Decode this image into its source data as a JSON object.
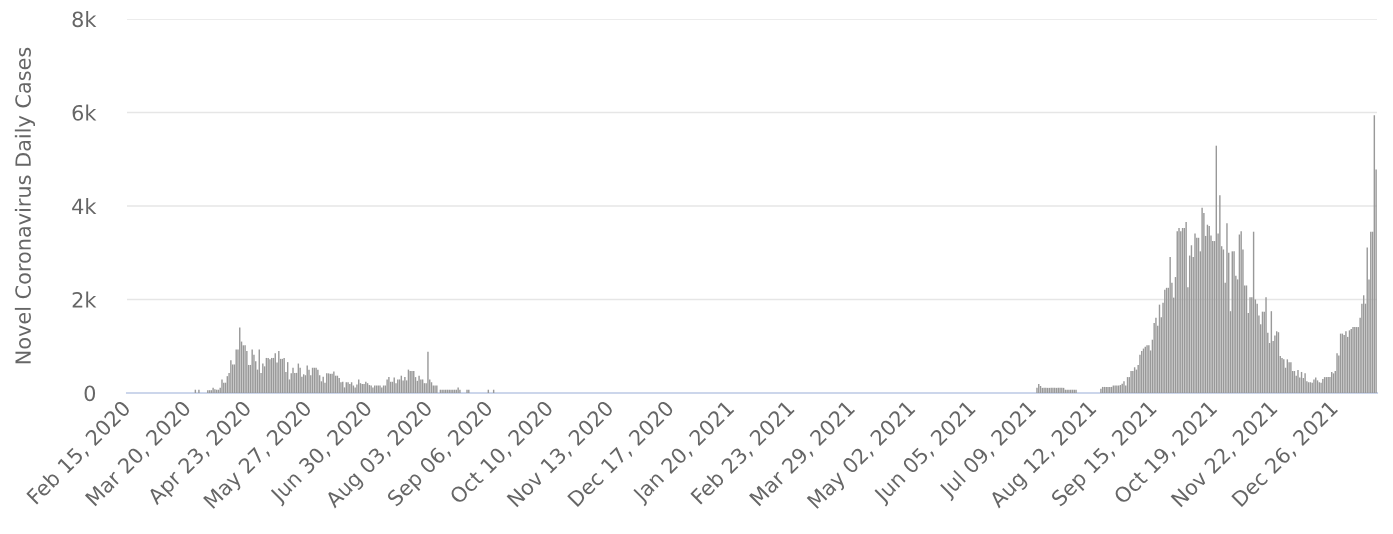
{
  "chart_data": {
    "type": "bar",
    "ylabel": "Novel Coronavirus Daily Cases",
    "color": "#999999",
    "ylim": [
      0,
      8000
    ],
    "yticks": [
      0,
      {
        "value": 2000,
        "label": "2k"
      },
      {
        "value": 4000,
        "label": "4k"
      },
      {
        "value": 6000,
        "label": "6k"
      },
      {
        "value": 8000,
        "label": "8k"
      }
    ],
    "grid": "y",
    "xlim": [
      "2020-02-14T12:00",
      "2022-01-18T12:00"
    ],
    "xticks": [
      {
        "value": "2020-02-15",
        "label": "Feb 15, 2020"
      },
      {
        "value": "2020-03-20",
        "label": "Mar 20, 2020"
      },
      {
        "value": "2020-04-23",
        "label": "Apr 23, 2020"
      },
      {
        "value": "2020-05-27",
        "label": "May 27, 2020"
      },
      {
        "value": "2020-06-30",
        "label": "Jun 30, 2020"
      },
      {
        "value": "2020-08-03",
        "label": "Aug 03, 2020"
      },
      {
        "value": "2020-09-06",
        "label": "Sep 06, 2020"
      },
      {
        "value": "2020-10-10",
        "label": "Oct 10, 2020"
      },
      {
        "value": "2020-11-13",
        "label": "Nov 13, 2020"
      },
      {
        "value": "2020-12-17",
        "label": "Dec 17, 2020"
      },
      {
        "value": "2021-01-20",
        "label": "Jan 20, 2021"
      },
      {
        "value": "2021-02-23",
        "label": "Feb 23, 2021"
      },
      {
        "value": "2021-03-29",
        "label": "Mar 29, 2021"
      },
      {
        "value": "2021-05-02",
        "label": "May 02, 2021"
      },
      {
        "value": "2021-06-05",
        "label": "Jun 05, 2021"
      },
      {
        "value": "2021-07-09",
        "label": "Jul 09, 2021"
      },
      {
        "value": "2021-08-12",
        "label": "Aug 12, 2021"
      },
      {
        "value": "2021-09-15",
        "label": "Sep 15, 2021"
      },
      {
        "value": "2021-10-19",
        "label": "Oct 19, 2021"
      },
      {
        "value": "2021-11-22",
        "label": "Nov 22, 2021"
      },
      {
        "value": "2021-12-26",
        "label": "Dec 26, 2021"
      }
    ],
    "x": [
      "2020-03-24",
      "2020-03-26",
      "2020-03-31",
      "2020-04-01",
      "2020-04-02",
      "2020-04-03",
      "2020-04-04",
      "2020-04-05",
      "2020-04-06",
      "2020-04-07",
      "2020-04-08",
      "2020-04-09",
      "2020-04-10",
      "2020-04-11",
      "2020-04-12",
      "2020-04-13",
      "2020-04-14",
      "2020-04-15",
      "2020-04-16",
      "2020-04-17",
      "2020-04-18",
      "2020-04-19",
      "2020-04-20",
      "2020-04-21",
      "2020-04-22",
      "2020-04-23",
      "2020-04-24",
      "2020-04-25",
      "2020-04-26",
      "2020-04-27",
      "2020-04-28",
      "2020-04-29",
      "2020-04-30",
      "2020-05-01",
      "2020-05-02",
      "2020-05-03",
      "2020-05-04",
      "2020-05-05",
      "2020-05-06",
      "2020-05-07",
      "2020-05-08",
      "2020-05-09",
      "2020-05-10",
      "2020-05-11",
      "2020-05-12",
      "2020-05-13",
      "2020-05-14",
      "2020-05-15",
      "2020-05-16",
      "2020-05-17",
      "2020-05-18",
      "2020-05-19",
      "2020-05-20",
      "2020-05-21",
      "2020-05-22",
      "2020-05-23",
      "2020-05-24",
      "2020-05-25",
      "2020-05-26",
      "2020-05-27",
      "2020-05-28",
      "2020-05-29",
      "2020-05-30",
      "2020-05-31",
      "2020-06-01",
      "2020-06-02",
      "2020-06-03",
      "2020-06-04",
      "2020-06-05",
      "2020-06-06",
      "2020-06-07",
      "2020-06-08",
      "2020-06-09",
      "2020-06-10",
      "2020-06-11",
      "2020-06-12",
      "2020-06-13",
      "2020-06-14",
      "2020-06-15",
      "2020-06-16",
      "2020-06-17",
      "2020-06-18",
      "2020-06-19",
      "2020-06-20",
      "2020-06-21",
      "2020-06-22",
      "2020-06-23",
      "2020-06-24",
      "2020-06-25",
      "2020-06-26",
      "2020-06-27",
      "2020-06-28",
      "2020-06-29",
      "2020-06-30",
      "2020-07-01",
      "2020-07-02",
      "2020-07-03",
      "2020-07-04",
      "2020-07-05",
      "2020-07-06",
      "2020-07-07",
      "2020-07-08",
      "2020-07-09",
      "2020-07-10",
      "2020-07-11",
      "2020-07-12",
      "2020-07-13",
      "2020-07-14",
      "2020-07-15",
      "2020-07-16",
      "2020-07-17",
      "2020-07-18",
      "2020-07-19",
      "2020-07-20",
      "2020-07-21",
      "2020-07-22",
      "2020-07-23",
      "2020-07-24",
      "2020-07-25",
      "2020-07-26",
      "2020-07-27",
      "2020-07-28",
      "2020-07-29",
      "2020-07-30",
      "2020-07-31",
      "2020-08-01",
      "2020-08-02",
      "2020-08-03",
      "2020-08-04",
      "2020-08-05",
      "2020-08-06",
      "2020-08-07",
      "2020-08-09",
      "2020-08-10",
      "2020-08-11",
      "2020-08-12",
      "2020-08-13",
      "2020-08-14",
      "2020-08-15",
      "2020-08-16",
      "2020-08-17",
      "2020-08-18",
      "2020-08-19",
      "2020-08-20",
      "2020-08-24",
      "2020-08-25",
      "2020-09-05",
      "2020-09-08",
      "2021-07-11",
      "2021-07-12",
      "2021-07-13",
      "2021-07-14",
      "2021-07-15",
      "2021-07-16",
      "2021-07-17",
      "2021-07-18",
      "2021-07-19",
      "2021-07-20",
      "2021-07-21",
      "2021-07-22",
      "2021-07-23",
      "2021-07-24",
      "2021-07-25",
      "2021-07-26",
      "2021-07-27",
      "2021-07-28",
      "2021-07-29",
      "2021-07-30",
      "2021-07-31",
      "2021-08-01",
      "2021-08-02",
      "2021-08-16",
      "2021-08-17",
      "2021-08-18",
      "2021-08-19",
      "2021-08-20",
      "2021-08-21",
      "2021-08-22",
      "2021-08-23",
      "2021-08-24",
      "2021-08-25",
      "2021-08-26",
      "2021-08-27",
      "2021-08-28",
      "2021-08-29",
      "2021-08-30",
      "2021-08-31",
      "2021-09-01",
      "2021-09-02",
      "2021-09-03",
      "2021-09-04",
      "2021-09-05",
      "2021-09-06",
      "2021-09-07",
      "2021-09-08",
      "2021-09-09",
      "2021-09-10",
      "2021-09-11",
      "2021-09-12",
      "2021-09-13",
      "2021-09-14",
      "2021-09-15",
      "2021-09-16",
      "2021-09-17",
      "2021-09-18",
      "2021-09-19",
      "2021-09-20",
      "2021-09-21",
      "2021-09-22",
      "2021-09-23",
      "2021-09-24",
      "2021-09-25",
      "2021-09-26",
      "2021-09-27",
      "2021-09-28",
      "2021-09-29",
      "2021-09-30",
      "2021-10-01",
      "2021-10-02",
      "2021-10-03",
      "2021-10-04",
      "2021-10-05",
      "2021-10-06",
      "2021-10-07",
      "2021-10-08",
      "2021-10-09",
      "2021-10-10",
      "2021-10-11",
      "2021-10-12",
      "2021-10-13",
      "2021-10-14",
      "2021-10-15",
      "2021-10-16",
      "2021-10-17",
      "2021-10-18",
      "2021-10-19",
      "2021-10-20",
      "2021-10-21",
      "2021-10-22",
      "2021-10-23",
      "2021-10-24",
      "2021-10-25",
      "2021-10-26",
      "2021-10-27",
      "2021-10-28",
      "2021-10-29",
      "2021-10-30",
      "2021-10-31",
      "2021-11-01",
      "2021-11-02",
      "2021-11-03",
      "2021-11-04",
      "2021-11-05",
      "2021-11-06",
      "2021-11-07",
      "2021-11-08",
      "2021-11-09",
      "2021-11-10",
      "2021-11-11",
      "2021-11-12",
      "2021-11-13",
      "2021-11-14",
      "2021-11-15",
      "2021-11-16",
      "2021-11-17",
      "2021-11-18",
      "2021-11-19",
      "2021-11-20",
      "2021-11-21",
      "2021-11-22",
      "2021-11-23",
      "2021-11-24",
      "2021-11-25",
      "2021-11-26",
      "2021-11-27",
      "2021-11-28",
      "2021-11-29",
      "2021-11-30",
      "2021-12-01",
      "2021-12-02",
      "2021-12-03",
      "2021-12-04",
      "2021-12-05",
      "2021-12-06",
      "2021-12-07",
      "2021-12-08",
      "2021-12-09",
      "2021-12-10",
      "2021-12-11",
      "2021-12-12",
      "2021-12-13",
      "2021-12-14",
      "2021-12-15",
      "2021-12-16",
      "2021-12-17",
      "2021-12-18",
      "2021-12-19",
      "2021-12-20",
      "2021-12-21",
      "2021-12-22",
      "2021-12-23",
      "2021-12-24",
      "2021-12-25",
      "2021-12-26",
      "2021-12-27",
      "2021-12-28",
      "2021-12-29",
      "2021-12-30",
      "2021-12-31",
      "2022-01-01",
      "2022-01-02",
      "2022-01-03",
      "2022-01-04",
      "2022-01-05",
      "2022-01-06",
      "2022-01-07",
      "2022-01-08",
      "2022-01-09",
      "2022-01-10",
      "2022-01-11",
      "2022-01-12",
      "2022-01-13",
      "2022-01-14",
      "2022-01-15",
      "2022-01-16",
      "2022-01-17",
      "2022-01-18"
    ],
    "values": [
      70,
      70,
      60,
      60,
      60,
      110,
      80,
      70,
      70,
      110,
      290,
      220,
      220,
      360,
      430,
      700,
      610,
      610,
      930,
      930,
      1400,
      1100,
      1020,
      1020,
      900,
      600,
      600,
      930,
      820,
      680,
      500,
      930,
      430,
      630,
      570,
      750,
      750,
      720,
      750,
      750,
      850,
      650,
      900,
      730,
      730,
      750,
      450,
      660,
      290,
      420,
      540,
      430,
      430,
      630,
      540,
      350,
      400,
      380,
      590,
      500,
      380,
      540,
      540,
      540,
      500,
      380,
      250,
      350,
      220,
      420,
      420,
      410,
      410,
      460,
      370,
      370,
      320,
      230,
      240,
      120,
      230,
      230,
      190,
      230,
      160,
      120,
      180,
      290,
      210,
      190,
      190,
      240,
      210,
      170,
      160,
      120,
      160,
      160,
      160,
      160,
      120,
      160,
      160,
      290,
      340,
      240,
      240,
      330,
      210,
      290,
      290,
      370,
      270,
      340,
      270,
      500,
      470,
      470,
      470,
      340,
      260,
      370,
      290,
      290,
      210,
      210,
      880,
      290,
      230,
      160,
      160,
      160,
      70,
      70,
      70,
      70,
      70,
      70,
      70,
      70,
      70,
      70,
      120,
      70,
      70,
      70,
      70,
      70,
      110,
      190,
      150,
      110,
      110,
      110,
      110,
      110,
      110,
      110,
      110,
      110,
      110,
      110,
      110,
      110,
      70,
      70,
      70,
      70,
      70,
      70,
      70,
      90,
      130,
      130,
      130,
      130,
      130,
      130,
      160,
      160,
      160,
      160,
      170,
      200,
      250,
      160,
      340,
      340,
      470,
      470,
      550,
      500,
      600,
      820,
      900,
      950,
      990,
      1020,
      1020,
      910,
      1140,
      1500,
      1610,
      1440,
      1890,
      1620,
      1930,
      2210,
      2250,
      2250,
      2910,
      2360,
      2040,
      2480,
      3460,
      3530,
      3460,
      3530,
      3530,
      3660,
      2260,
      2940,
      3160,
      2910,
      3410,
      3320,
      3320,
      3030,
      3960,
      3850,
      3360,
      3600,
      3570,
      3370,
      3250,
      3250,
      5290,
      3410,
      4230,
      3140,
      3070,
      2360,
      3630,
      3000,
      1750,
      3030,
      3030,
      2510,
      2430,
      3390,
      3460,
      3070,
      2300,
      2300,
      1710,
      2050,
      2050,
      3450,
      2000,
      1910,
      1660,
      1470,
      1740,
      1740,
      2050,
      1290,
      1070,
      1750,
      1110,
      1230,
      1320,
      1300,
      790,
      750,
      720,
      540,
      720,
      660,
      660,
      470,
      470,
      370,
      490,
      330,
      450,
      320,
      420,
      250,
      230,
      230,
      220,
      290,
      330,
      270,
      230,
      220,
      300,
      340,
      340,
      340,
      340,
      450,
      420,
      470,
      850,
      800,
      1270,
      1270,
      1240,
      1320,
      1200,
      1340,
      1370,
      1410,
      1410,
      1410,
      1410,
      1610,
      1910,
      2090,
      1910,
      3110,
      2430,
      3450,
      3450,
      5940,
      4780
    ]
  }
}
